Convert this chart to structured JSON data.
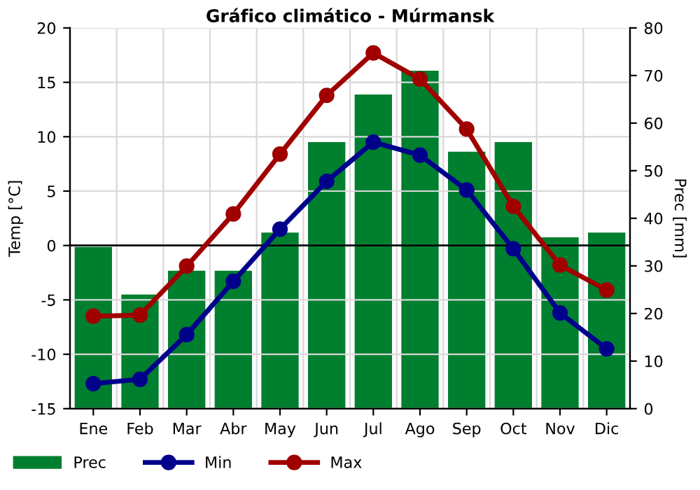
{
  "chart_data": {
    "type": "line",
    "title": "Gráfico climático - Múrmansk",
    "ylabel": "Temp [°C]",
    "y2label": "Prec [mm]",
    "categories": [
      "Ene",
      "Feb",
      "Mar",
      "Abr",
      "May",
      "Jun",
      "Jul",
      "Ago",
      "Sep",
      "Oct",
      "Nov",
      "Dic"
    ],
    "series": [
      {
        "name": "Prec",
        "type": "bar",
        "axis": "y2",
        "color": "#007f2f",
        "values": [
          34,
          24,
          29,
          29,
          37,
          56,
          66,
          71,
          54,
          56,
          36,
          37
        ]
      },
      {
        "name": "Min",
        "color": "#00008b",
        "values": [
          -12.7,
          -12.3,
          -8.2,
          -3.3,
          1.5,
          5.9,
          9.5,
          8.3,
          5.1,
          -0.3,
          -6.2,
          -9.5
        ]
      },
      {
        "name": "Max",
        "color": "#a00000",
        "values": [
          -6.5,
          -6.4,
          -1.9,
          2.9,
          8.4,
          13.8,
          17.7,
          15.3,
          10.7,
          3.6,
          -1.8,
          -4.1
        ]
      }
    ],
    "ylim": [
      -15,
      20
    ],
    "yticks": [
      -15,
      -10,
      -5,
      0,
      5,
      10,
      15,
      20
    ],
    "y2lim": [
      0,
      80
    ],
    "y2ticks": [
      0,
      10,
      20,
      30,
      40,
      50,
      60,
      70,
      80
    ],
    "ref_lines": [
      {
        "axis": "y",
        "value": 0,
        "color": "#000000"
      }
    ],
    "grid": true,
    "legend": "bottom left",
    "marker": "circle",
    "line_style": "solid"
  }
}
